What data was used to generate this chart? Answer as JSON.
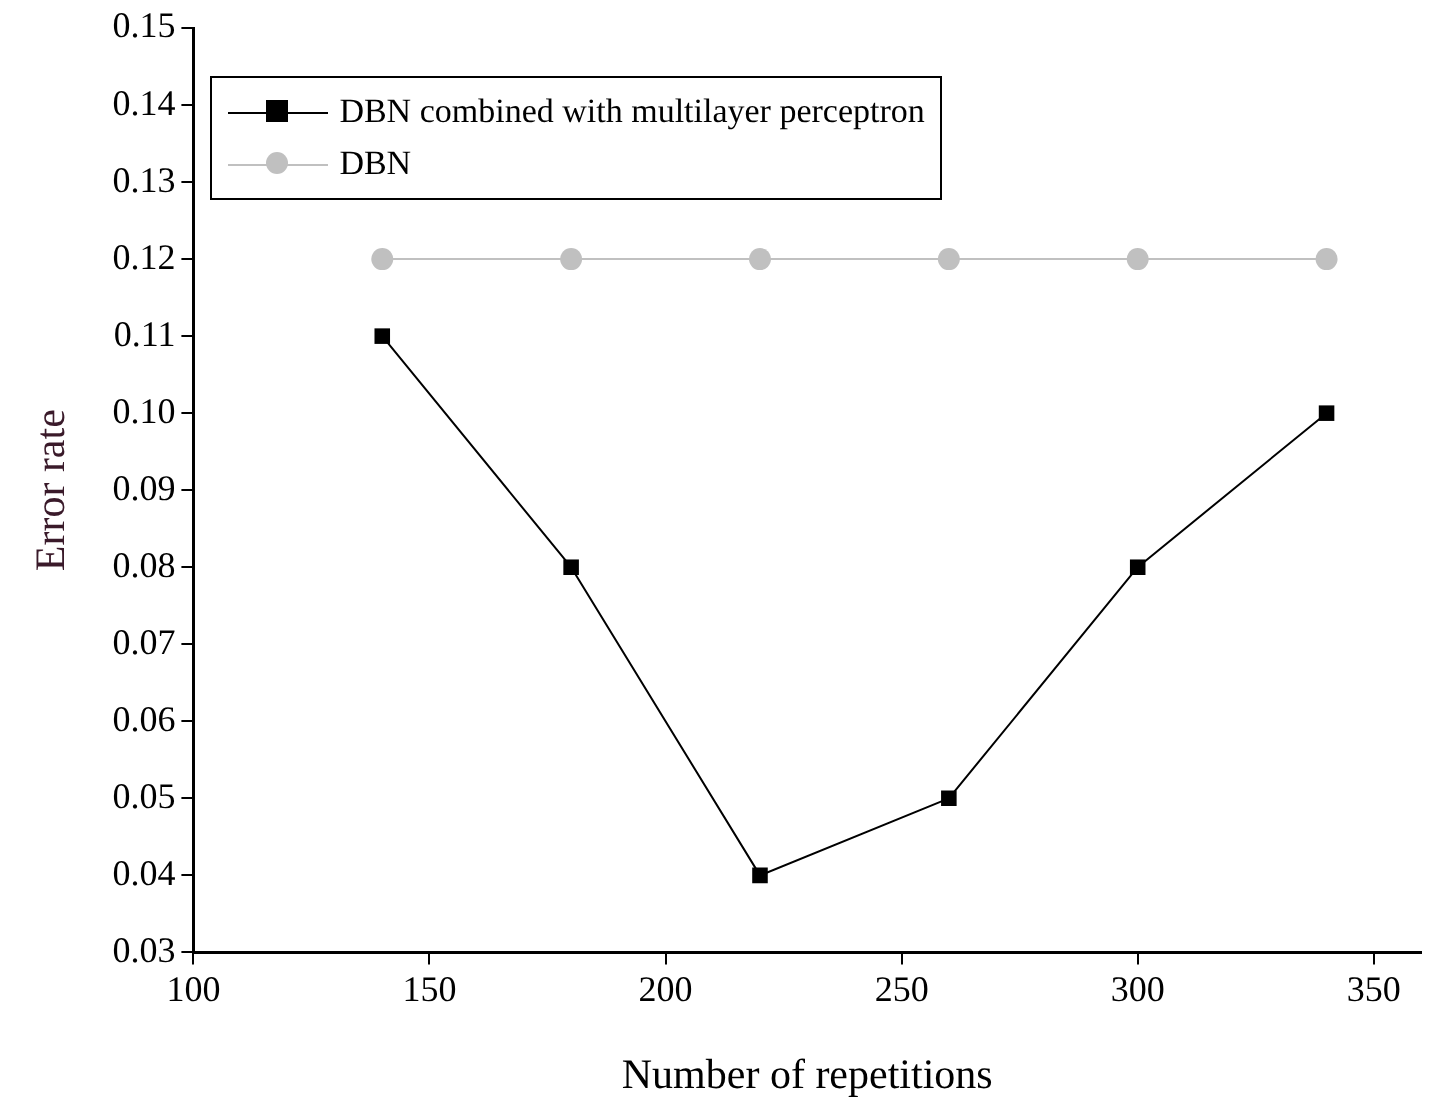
{
  "chart_data": {
    "type": "line",
    "xlabel": "Number of repetitions",
    "ylabel": "Error rate",
    "x": [
      140,
      180,
      220,
      260,
      300,
      340
    ],
    "series": [
      {
        "name": "DBN combined with multilayer perceptron",
        "color": "#000000",
        "marker": "square",
        "values": [
          0.11,
          0.08,
          0.04,
          0.05,
          0.08,
          0.1
        ]
      },
      {
        "name": "DBN",
        "color": "#c0c0c0",
        "marker": "circle",
        "values": [
          0.12,
          0.12,
          0.12,
          0.12,
          0.12,
          0.12
        ]
      }
    ],
    "xlim": [
      100,
      360
    ],
    "xticks": [
      100,
      150,
      200,
      250,
      300,
      350
    ],
    "ylim": [
      0.03,
      0.15
    ],
    "yticks": [
      0.03,
      0.04,
      0.05,
      0.06,
      0.07,
      0.08,
      0.09,
      {
        "value": 0.1,
        "label": "0.10"
      },
      0.11,
      0.12,
      0.13,
      0.14,
      0.15
    ],
    "grid": false,
    "legend": "top left",
    "line_style": "solid"
  }
}
